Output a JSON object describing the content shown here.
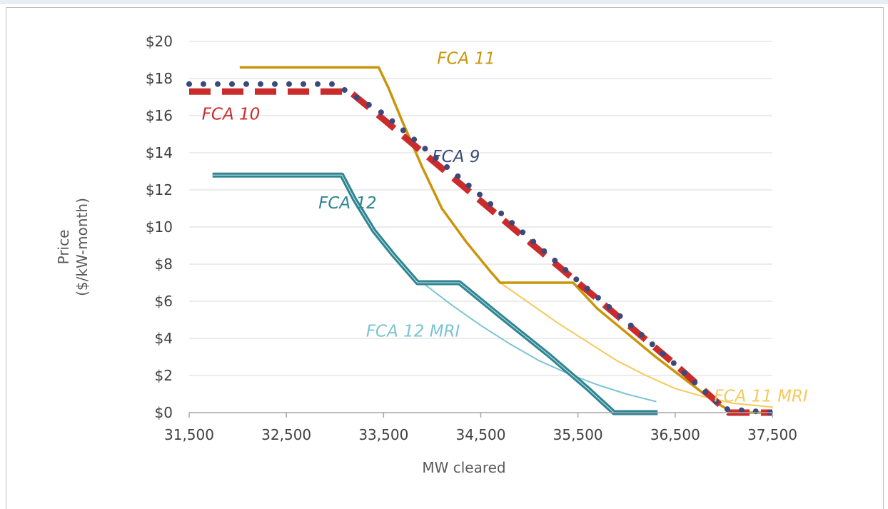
{
  "chart_data": {
    "type": "line",
    "title": "",
    "xlabel": "MW cleared",
    "ylabel_lines": [
      "Price",
      "($/kW-month)"
    ],
    "xlim": [
      31500,
      37500
    ],
    "ylim": [
      0,
      20
    ],
    "xticks": [
      31500,
      32500,
      33500,
      34500,
      35500,
      36500,
      37500
    ],
    "xtick_labels": [
      "31,500",
      "32,500",
      "33,500",
      "34,500",
      "35,500",
      "36,500",
      "37,500"
    ],
    "yticks": [
      0,
      2,
      4,
      6,
      8,
      10,
      12,
      14,
      16,
      18,
      20
    ],
    "ytick_labels": [
      "$0",
      "$2",
      "$4",
      "$6",
      "$8",
      "$10",
      "$12",
      "$14",
      "$16",
      "$18",
      "$20"
    ],
    "grid": "horizontal",
    "series": [
      {
        "name": "FCA 11 MRI",
        "color": "#f5c95a",
        "style": "thin",
        "x": [
          34700,
          35000,
          35300,
          35600,
          35900,
          36200,
          36500,
          36800,
          37100,
          37500
        ],
        "y": [
          7.0,
          5.9,
          4.8,
          3.8,
          2.8,
          2.0,
          1.3,
          0.85,
          0.5,
          0.3
        ]
      },
      {
        "name": "FCA 12 MRI",
        "color": "#7cc4d4",
        "style": "thin",
        "x": [
          33900,
          34200,
          34500,
          34800,
          35100,
          35400,
          35700,
          36000,
          36300
        ],
        "y": [
          7.0,
          5.8,
          4.7,
          3.7,
          2.8,
          2.1,
          1.5,
          1.0,
          0.6
        ]
      },
      {
        "name": "FCA 12",
        "color": "#2f8592",
        "style": "thick",
        "x": [
          31740,
          33070,
          33200,
          33400,
          33600,
          33850,
          34280,
          34700,
          35200,
          35600,
          35870,
          36320
        ],
        "y": [
          12.8,
          12.8,
          11.5,
          9.8,
          8.5,
          7.0,
          7.0,
          5.2,
          3.1,
          1.3,
          0,
          0
        ]
      },
      {
        "name": "FCA 11",
        "color": "#c9960b",
        "style": "medium",
        "x": [
          32020,
          33450,
          33550,
          33700,
          33900,
          34100,
          34350,
          34600,
          34700,
          35450,
          35700,
          36000,
          36300,
          36600,
          36900,
          37100,
          37500
        ],
        "y": [
          18.6,
          18.6,
          17.5,
          15.6,
          13.2,
          11.0,
          9.2,
          7.6,
          7.0,
          7.0,
          5.6,
          4.3,
          3.0,
          1.8,
          0.6,
          0,
          0
        ]
      },
      {
        "name": "FCA 10",
        "color": "#cc2b2b",
        "style": "dashed",
        "x": [
          31500,
          33150,
          33500,
          34000,
          34500,
          35000,
          35500,
          36000,
          36500,
          37050,
          37500
        ],
        "y": [
          17.3,
          17.3,
          15.8,
          13.6,
          11.4,
          9.2,
          7.0,
          4.8,
          2.6,
          0,
          0
        ]
      },
      {
        "name": "FCA 9",
        "color": "#3b4a7a",
        "style": "dotted",
        "x": [
          31500,
          33000,
          33500,
          34000,
          34500,
          35000,
          35500,
          36000,
          36500,
          37000,
          37500
        ],
        "y": [
          17.7,
          17.7,
          16.1,
          13.9,
          11.7,
          9.4,
          7.1,
          4.9,
          2.6,
          0.2,
          0.0
        ]
      }
    ],
    "annotations": [
      {
        "text": "FCA 11",
        "color": "#c9960b",
        "x": 34050,
        "y": 19.1
      },
      {
        "text": "FCA 10",
        "color": "#cc2b2b",
        "x": 31630,
        "y": 16.1
      },
      {
        "text": "FCA 9",
        "color": "#3b4a7a",
        "x": 34000,
        "y": 13.8
      },
      {
        "text": "FCA 12",
        "color": "#2f8592",
        "x": 32830,
        "y": 11.3
      },
      {
        "text": "FCA 12 MRI",
        "color": "#7cc4d4",
        "x": 33320,
        "y": 4.4
      },
      {
        "text": "FCA 11 MRI",
        "color": "#f5c95a",
        "x": 36900,
        "y": 0.9
      }
    ]
  }
}
